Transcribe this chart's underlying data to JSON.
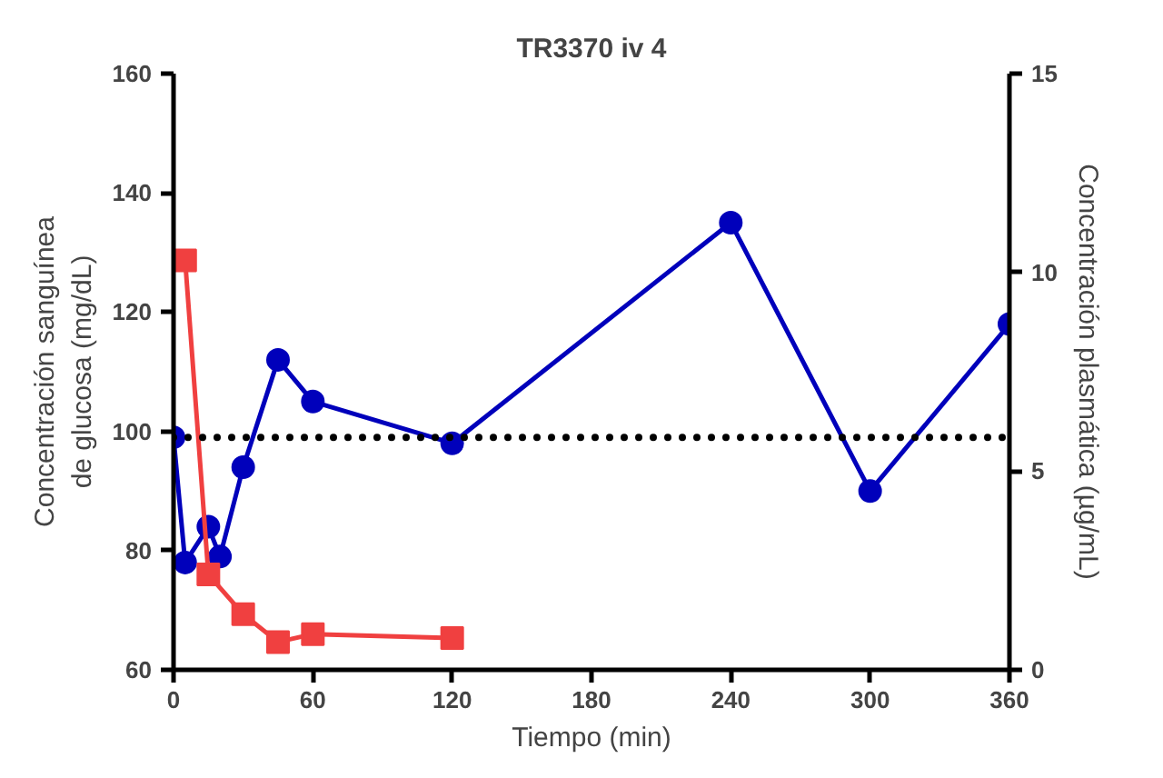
{
  "chart_data": {
    "type": "line",
    "title": "TR3370 iv 4",
    "xlabel": "Tiempo (min)",
    "ylabel": "Concentración sanguínea\nde glucosa (mg/dL)",
    "y2label": "Concentración plasmática (µg/mL)",
    "xlim": [
      0,
      360
    ],
    "xticks": [
      0,
      60,
      120,
      180,
      240,
      300,
      360
    ],
    "ylim": [
      60,
      160
    ],
    "yticks": [
      60,
      80,
      100,
      120,
      140,
      160
    ],
    "y2lim": [
      0,
      15
    ],
    "y2ticks": [
      0,
      5,
      10,
      15
    ],
    "grid": false,
    "line_style": "solid",
    "series": [
      {
        "color": "#0000bb",
        "marker": "circle",
        "x": [
          0,
          5,
          15,
          20,
          30,
          45,
          60,
          120,
          240,
          300,
          360
        ],
        "values": [
          99,
          78,
          84,
          79,
          94,
          112,
          105,
          98,
          135,
          90,
          118
        ]
      },
      {
        "color": "#f04040",
        "marker": "square",
        "axis": "y2",
        "x": [
          5,
          15,
          30,
          45,
          60,
          120
        ],
        "values": [
          10.3,
          2.4,
          1.4,
          0.7,
          0.9,
          0.8
        ]
      }
    ],
    "ref_lines": [
      {
        "axis": "y",
        "value": 99,
        "label": null,
        "color": "#000000",
        "line_style": "dotted"
      }
    ]
  }
}
